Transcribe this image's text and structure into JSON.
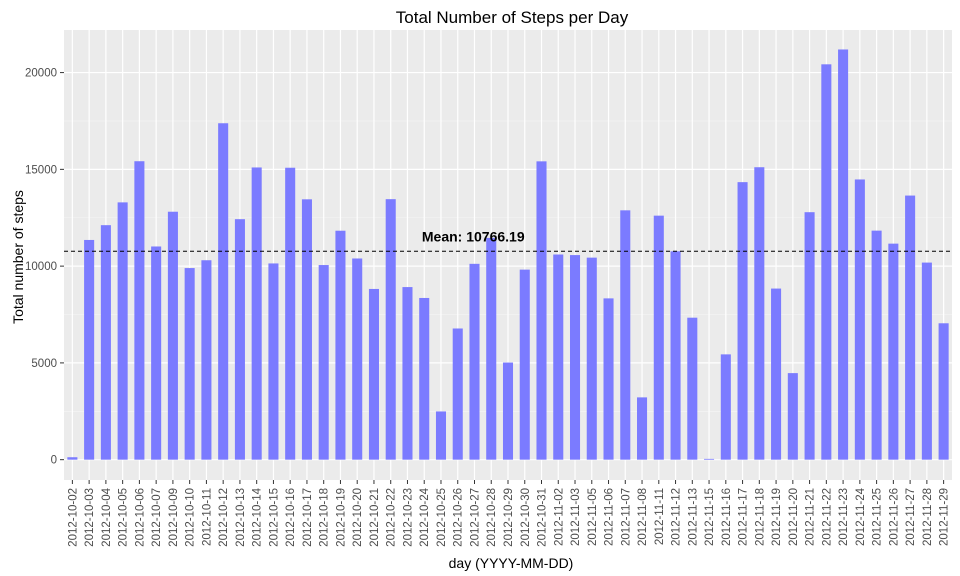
{
  "chart_data": {
    "type": "bar",
    "title": "Total Number of Steps per Day",
    "xlabel": "day (YYYY-MM-DD)",
    "ylabel": "Total number of steps",
    "ylim": [
      -1050,
      22200
    ],
    "yticks": [
      0,
      5000,
      10000,
      15000,
      20000
    ],
    "grid": true,
    "legend": "none",
    "bar_color": "#7b7bff",
    "panel_color": "#ebebeb",
    "categories": [
      "2012-10-02",
      "2012-10-03",
      "2012-10-04",
      "2012-10-05",
      "2012-10-06",
      "2012-10-07",
      "2012-10-09",
      "2012-10-10",
      "2012-10-11",
      "2012-10-12",
      "2012-10-13",
      "2012-10-14",
      "2012-10-15",
      "2012-10-16",
      "2012-10-17",
      "2012-10-18",
      "2012-10-19",
      "2012-10-20",
      "2012-10-21",
      "2012-10-22",
      "2012-10-23",
      "2012-10-24",
      "2012-10-25",
      "2012-10-26",
      "2012-10-27",
      "2012-10-28",
      "2012-10-29",
      "2012-10-30",
      "2012-10-31",
      "2012-11-02",
      "2012-11-03",
      "2012-11-05",
      "2012-11-06",
      "2012-11-07",
      "2012-11-08",
      "2012-11-11",
      "2012-11-12",
      "2012-11-13",
      "2012-11-15",
      "2012-11-16",
      "2012-11-17",
      "2012-11-18",
      "2012-11-19",
      "2012-11-20",
      "2012-11-21",
      "2012-11-22",
      "2012-11-23",
      "2012-11-24",
      "2012-11-25",
      "2012-11-26",
      "2012-11-27",
      "2012-11-28",
      "2012-11-29"
    ],
    "values": [
      126,
      11352,
      12116,
      13294,
      15420,
      11015,
      12811,
      9900,
      10304,
      17382,
      12426,
      15098,
      10139,
      15084,
      13452,
      10056,
      11829,
      10395,
      8821,
      13460,
      8918,
      8355,
      2492,
      6778,
      10119,
      11458,
      5018,
      9819,
      15414,
      10600,
      10571,
      10439,
      8334,
      12883,
      3219,
      12608,
      10765,
      7336,
      41,
      5441,
      14339,
      15110,
      8841,
      4472,
      12787,
      20427,
      21194,
      14478,
      11834,
      11162,
      13646,
      10183,
      7047
    ],
    "hline": {
      "value": 10766.19,
      "label": "Mean: 10766.19",
      "style": "dashed",
      "label_x_category": "2012-10-28"
    }
  }
}
